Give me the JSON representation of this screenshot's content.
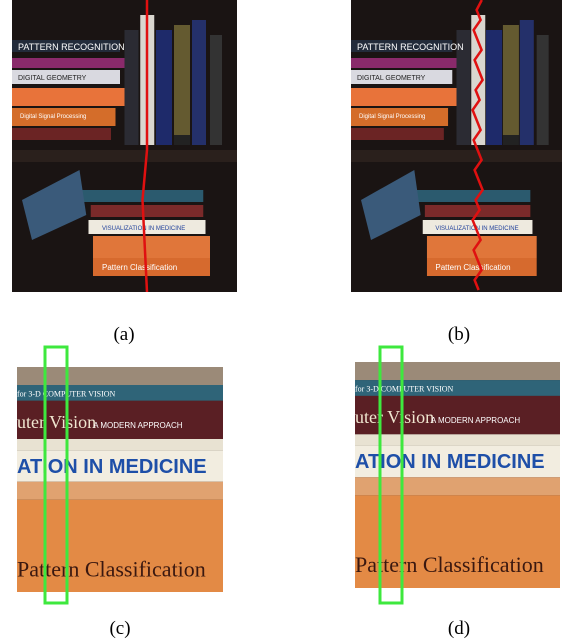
{
  "panels": [
    {
      "label": "(a)",
      "texts": [
        "PATTERN RECOGNITION",
        "DIGITAL GEOMETRY",
        "Digital Signal Processing",
        "VISUALIZATION IN MEDICINE",
        "Pattern Classification"
      ]
    },
    {
      "label": "(b)",
      "texts": [
        "PATTERN RECOGNITION",
        "DIGITAL GEOMETRY",
        "Digital Signal Processing",
        "VISUALIZATION IN MEDICINE",
        "Pattern Classification"
      ]
    },
    {
      "label": "(c)",
      "texts": [
        "for 3-D COMPUTER VISION",
        "uter Vision",
        "A MODERN APPROACH",
        "ATION IN MEDICINE",
        "Pattern Classification"
      ]
    },
    {
      "label": "(d)",
      "texts": [
        "for 3-D COMPUTER VISION",
        "uter Vision",
        "A MODERN APPROACH",
        "ATION IN MEDICINE",
        "Pattern Classification"
      ]
    }
  ]
}
